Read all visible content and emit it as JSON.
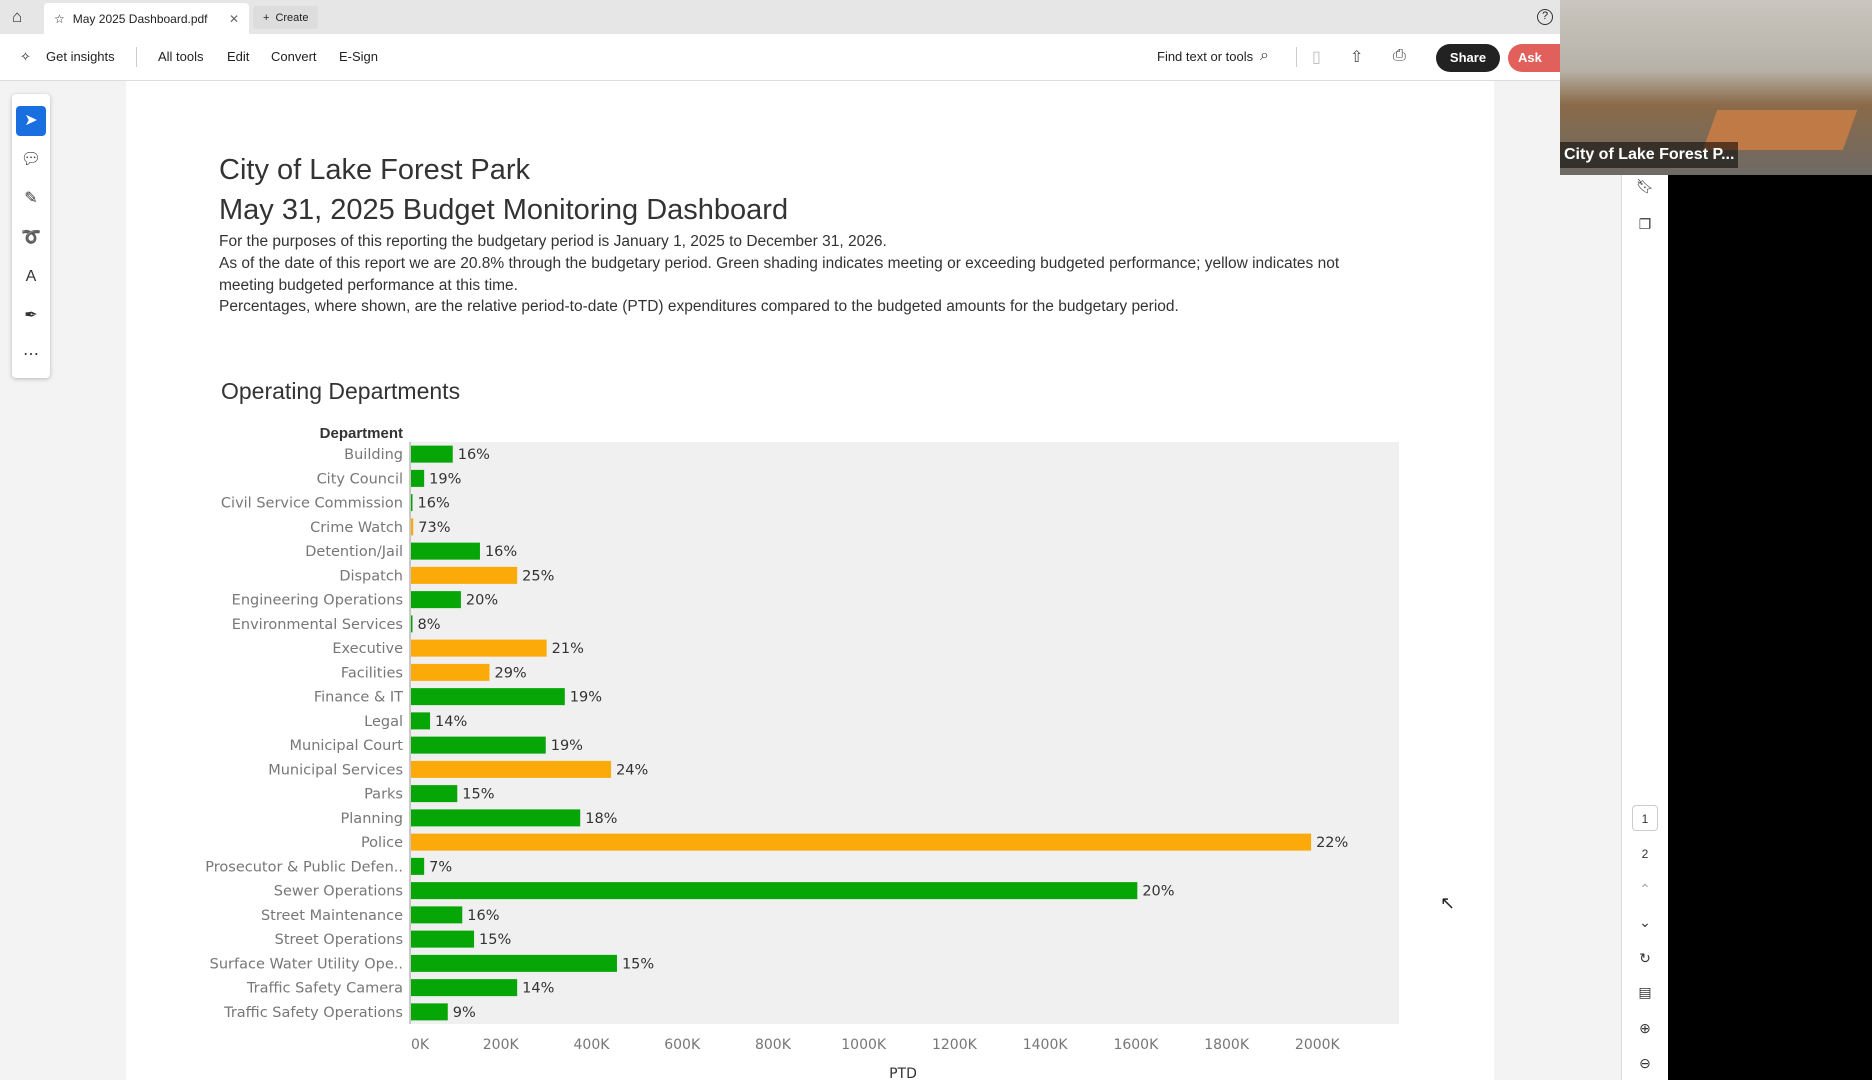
{
  "tabbar": {
    "tab_title": "May 2025 Dashboard.pdf",
    "create_label": "Create"
  },
  "toolbar": {
    "get_insights": "Get insights",
    "all_tools": "All tools",
    "edit": "Edit",
    "convert": "Convert",
    "esign": "E-Sign",
    "find": "Find text or tools",
    "share": "Share",
    "ask": "Ask"
  },
  "video": {
    "caption": "City of Lake Forest P..."
  },
  "page_nav": {
    "pages": [
      "1",
      "2"
    ]
  },
  "doc": {
    "title1": "City of Lake Forest Park",
    "title2": "May 31, 2025 Budget Monitoring Dashboard",
    "para1": "For the purposes of this reporting the budgetary period is January 1, 2025 to December 31, 2026.",
    "para2": "As of the date of this report we are 20.8% through the budgetary period.  Green shading indicates meeting or exceeding  budgeted performance; yellow indicates not meeting budgeted performance at this time.",
    "para3": "Percentages, where shown, are the relative period-to-date (PTD) expenditures compared to the budgeted amounts for the budgetary period.",
    "section": "Operating Departments"
  },
  "chart_data": {
    "type": "bar",
    "orientation": "horizontal",
    "ylabel": "Department",
    "xlabel": "PTD",
    "xlim": [
      0,
      2180
    ],
    "xticks": [
      "0K",
      "200K",
      "400K",
      "600K",
      "800K",
      "1000K",
      "1200K",
      "1400K",
      "1600K",
      "1800K",
      "2000K"
    ],
    "colors": {
      "green": "#05a605",
      "orange": "#fca90a"
    },
    "categories": [
      "Building",
      "City Council",
      "Civil Service Commission",
      "Crime Watch",
      "Detention/Jail",
      "Dispatch",
      "Engineering Operations",
      "Environmental Services",
      "Executive",
      "Facilities",
      "Finance & IT",
      "Legal",
      "Municipal Court",
      "Municipal Services",
      "Parks",
      "Planning",
      "Police",
      "Prosecutor & Public Defen..",
      "Sewer Operations",
      "Street Maintenance",
      "Street Operations",
      "Surface Water Utility Ope..",
      "Traffic Safety Camera",
      "Traffic Safety Operations"
    ],
    "values_k": [
      92,
      29,
      3,
      5,
      152,
      234,
      110,
      2,
      299,
      173,
      339,
      42,
      297,
      441,
      102,
      373,
      1984,
      29,
      1601,
      113,
      139,
      454,
      234,
      81
    ],
    "labels": [
      "16%",
      "19%",
      "16%",
      "73%",
      "16%",
      "25%",
      "20%",
      "8%",
      "21%",
      "29%",
      "19%",
      "14%",
      "19%",
      "24%",
      "15%",
      "18%",
      "22%",
      "7%",
      "20%",
      "16%",
      "15%",
      "15%",
      "14%",
      "9%"
    ],
    "status": [
      "green",
      "green",
      "green",
      "orange",
      "green",
      "orange",
      "green",
      "green",
      "orange",
      "orange",
      "green",
      "green",
      "green",
      "orange",
      "green",
      "green",
      "orange",
      "green",
      "green",
      "green",
      "green",
      "green",
      "green",
      "green"
    ]
  }
}
